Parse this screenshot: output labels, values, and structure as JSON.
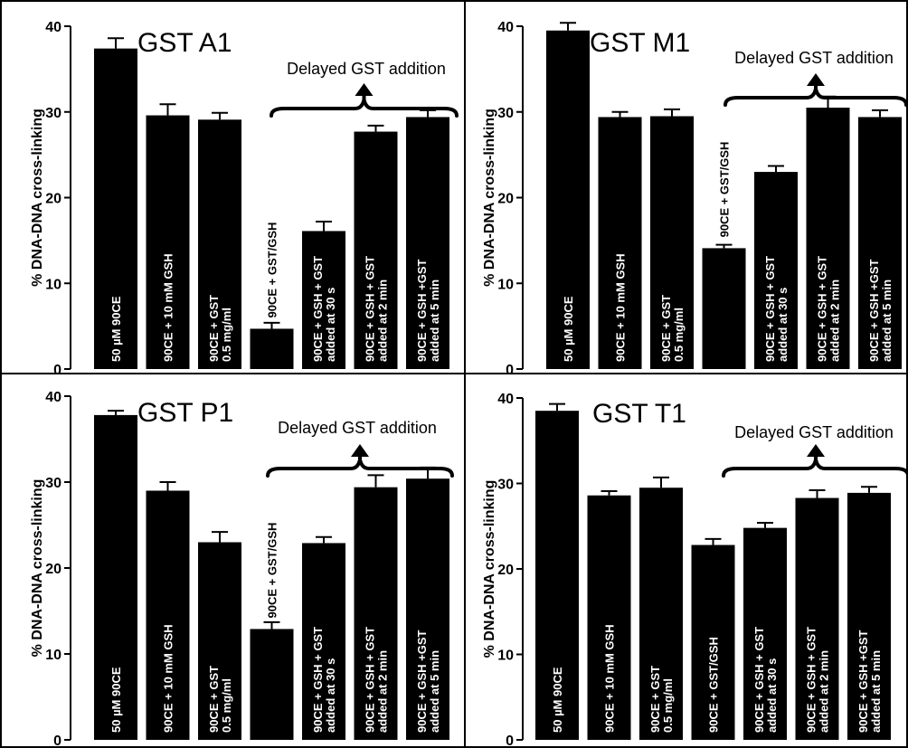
{
  "chart_data": [
    {
      "type": "bar",
      "title": "GST A1",
      "ylabel": "% DNA-DNA cross-linking",
      "ylim": [
        0,
        40
      ],
      "yticks": [
        "0",
        "10",
        "20",
        "30",
        "40"
      ],
      "annotation": "Delayed GST addition",
      "categories": [
        [
          "50 µM 90CE"
        ],
        [
          "90CE + 10 mM GSH"
        ],
        [
          "90CE + GST",
          "0.5 mg/ml"
        ],
        [
          "90CE + GST/GSH"
        ],
        [
          "90CE + GSH + GST",
          "added at 30 s"
        ],
        [
          "90CE + GSH + GST",
          "added at 2 min"
        ],
        [
          "90CE + GSH +GST",
          "added at 5 min"
        ]
      ],
      "values": [
        37.4,
        29.6,
        29.1,
        4.7,
        16.1,
        27.7,
        29.4
      ],
      "errors": [
        1.2,
        1.3,
        0.8,
        0.7,
        1.1,
        0.7,
        0.8
      ]
    },
    {
      "type": "bar",
      "title": "GST M1",
      "ylabel": "% DNA-DNA cross-linking",
      "ylim": [
        0,
        40
      ],
      "yticks": [
        "0",
        "10",
        "20",
        "30",
        "40"
      ],
      "annotation": "Delayed GST addition",
      "categories": [
        [
          "50 µM 90CE"
        ],
        [
          "90CE + 10 mM GSH"
        ],
        [
          "90CE + GST",
          "0.5 mg/ml"
        ],
        [
          "90CE + GST/GSH"
        ],
        [
          "90CE + GSH + GST",
          "added at 30 s"
        ],
        [
          "90CE + GSH + GST",
          "added at 2 min"
        ],
        [
          "90CE + GSH +GST",
          "added at 5 min"
        ]
      ],
      "values": [
        39.5,
        29.4,
        29.5,
        14.1,
        23.0,
        30.5,
        29.4
      ],
      "errors": [
        0.9,
        0.6,
        0.8,
        0.4,
        0.7,
        1.3,
        0.8
      ]
    },
    {
      "type": "bar",
      "title": "GST P1",
      "ylabel": "% DNA-DNA cross-linking",
      "ylim": [
        0,
        40
      ],
      "yticks": [
        "0",
        "10",
        "20",
        "30",
        "40"
      ],
      "annotation": "Delayed GST addition",
      "categories": [
        [
          "50 µM 90CE"
        ],
        [
          "90CE + 10 mM GSH"
        ],
        [
          "90CE + GST",
          "0.5 mg/ml"
        ],
        [
          "90CE + GST/GSH"
        ],
        [
          "90CE + GSH + GST",
          "added at 30 s"
        ],
        [
          "90CE + GSH + GST",
          "added at 2 min"
        ],
        [
          "90CE + GSH +GST",
          "added at 5 min"
        ]
      ],
      "values": [
        37.8,
        29.0,
        23.0,
        12.9,
        22.9,
        29.4,
        30.4
      ],
      "errors": [
        0.5,
        1.0,
        1.2,
        0.8,
        0.7,
        1.4,
        1.3
      ]
    },
    {
      "type": "bar",
      "title": "GST T1",
      "ylabel": "% DNA-DNA cross-linking",
      "ylim": [
        0,
        40
      ],
      "yticks": [
        "0",
        "10",
        "20",
        "30",
        "40"
      ],
      "annotation": "Delayed GST addition",
      "categories": [
        [
          "50 µM 90CE"
        ],
        [
          "90CE + 10 mM GSH"
        ],
        [
          "90CE + GST",
          "0.5 mg/ml"
        ],
        [
          "90CE + GST/GSH"
        ],
        [
          "90CE + GSH + GST",
          "added at 30 s"
        ],
        [
          "90CE + GSH + GST",
          "added at 2 min"
        ],
        [
          "90CE + GSH +GST",
          "added at 5 min"
        ]
      ],
      "values": [
        38.5,
        28.6,
        29.5,
        22.8,
        24.8,
        28.3,
        28.9
      ],
      "errors": [
        0.8,
        0.5,
        1.2,
        0.7,
        0.6,
        0.9,
        0.7
      ]
    }
  ],
  "colors": {
    "bar": "#000000",
    "bar_label": "#ffffff",
    "background": "#ffffff",
    "border": "#000000"
  }
}
